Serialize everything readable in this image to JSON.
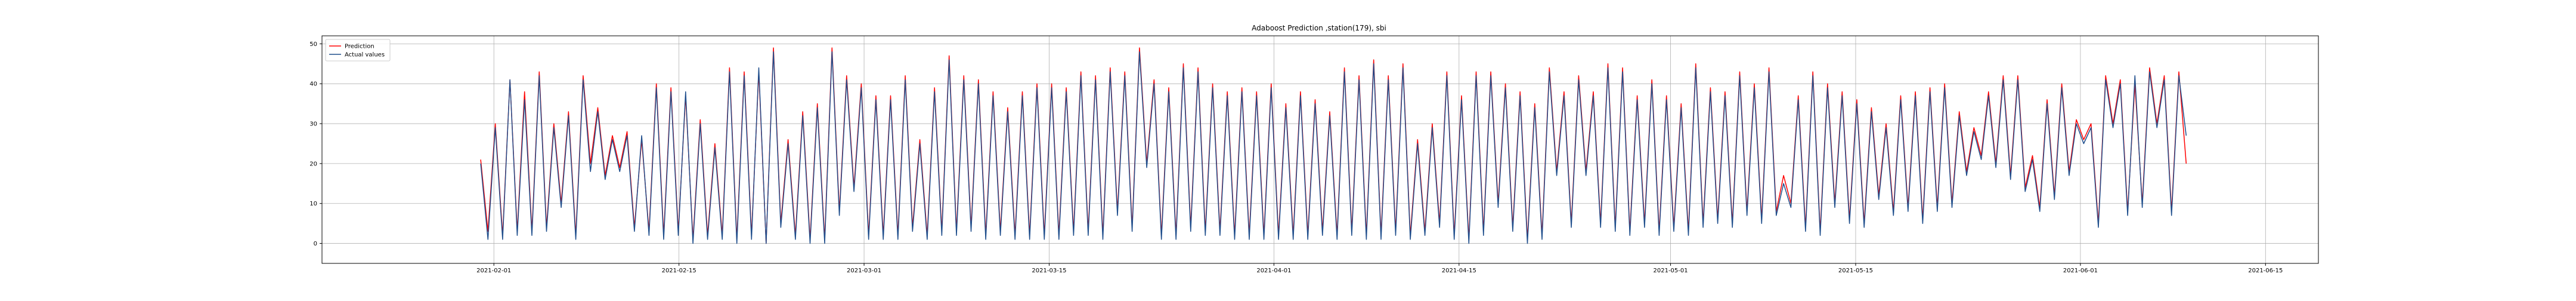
{
  "chart_data": {
    "type": "line",
    "title": "Adaboost Prediction ,station(179), sbi",
    "xlabel": "",
    "ylabel": "",
    "grid": true,
    "legend_placement": "top-left",
    "xlim": [
      "2021-01-19",
      "2021-06-19"
    ],
    "ylim": [
      -5,
      52
    ],
    "x_ticks": [
      "2021-02-01",
      "2021-02-15",
      "2021-03-01",
      "2021-03-15",
      "2021-04-01",
      "2021-04-15",
      "2021-05-01",
      "2021-05-15",
      "2021-06-01",
      "2021-06-15"
    ],
    "y_ticks": [
      0,
      10,
      20,
      30,
      40,
      50
    ],
    "x_range": [
      "2021-01-31",
      "2021-06-09"
    ],
    "series": [
      {
        "name": "Prediction",
        "color": "#ff0000",
        "values": [
          21,
          3,
          30,
          2,
          41,
          3,
          38,
          3,
          43,
          4,
          30,
          10,
          33,
          2,
          42,
          20,
          34,
          17,
          27,
          19,
          28,
          4,
          26,
          3,
          40,
          2,
          39,
          3,
          37,
          1,
          31,
          2,
          25,
          2,
          44,
          1,
          43,
          2,
          43,
          0,
          49,
          5,
          26,
          2,
          33,
          1,
          35,
          1,
          49,
          8,
          42,
          14,
          40,
          2,
          37,
          2,
          37,
          2,
          42,
          4,
          26,
          2,
          39,
          3,
          47,
          3,
          42,
          4,
          41,
          2,
          38,
          3,
          34,
          2,
          38,
          2,
          40,
          2,
          40,
          2,
          39,
          3,
          43,
          3,
          42,
          2,
          44,
          8,
          43,
          4,
          49,
          20,
          41,
          2,
          39,
          2,
          45,
          4,
          44,
          3,
          40,
          3,
          38,
          2,
          39,
          2,
          38,
          2,
          40,
          2,
          35,
          2,
          38,
          2,
          36,
          3,
          33,
          2,
          44,
          3,
          42,
          2,
          46,
          2,
          42,
          3,
          45,
          2,
          26,
          3,
          30,
          5,
          43,
          2,
          37,
          1,
          43,
          3,
          43,
          10,
          40,
          4,
          38,
          1,
          35,
          2,
          44,
          18,
          38,
          5,
          42,
          18,
          38,
          5,
          45,
          4,
          44,
          3,
          37,
          5,
          41,
          3,
          37,
          4,
          35,
          3,
          45,
          5,
          39,
          6,
          38,
          5,
          43,
          8,
          40,
          6,
          44,
          8,
          17,
          10,
          37,
          4,
          43,
          3,
          40,
          10,
          38,
          6,
          36,
          5,
          34,
          12,
          30,
          8,
          37,
          9,
          38,
          6,
          39,
          9,
          40,
          10,
          33,
          18,
          29,
          22,
          38,
          20,
          42,
          17,
          42,
          14,
          22,
          9,
          36,
          12,
          40,
          18,
          31,
          26,
          30,
          5,
          42,
          30,
          41,
          8,
          40,
          10,
          44,
          30,
          42,
          8,
          43,
          20
        ]
      },
      {
        "name": "Actual values",
        "color": "#1f4e8c",
        "values": [
          20,
          1,
          29,
          1,
          41,
          2,
          36,
          2,
          42,
          3,
          29,
          9,
          32,
          1,
          41,
          18,
          33,
          16,
          26,
          18,
          27,
          3,
          27,
          2,
          39,
          1,
          38,
          2,
          38,
          0,
          30,
          1,
          24,
          1,
          43,
          0,
          42,
          1,
          44,
          0,
          48,
          4,
          25,
          1,
          32,
          0,
          34,
          0,
          48,
          7,
          41,
          13,
          39,
          1,
          36,
          1,
          36,
          1,
          41,
          3,
          25,
          1,
          38,
          2,
          46,
          2,
          41,
          3,
          40,
          1,
          37,
          2,
          33,
          1,
          37,
          1,
          39,
          1,
          39,
          1,
          38,
          2,
          42,
          2,
          41,
          1,
          43,
          7,
          42,
          3,
          48,
          19,
          40,
          1,
          38,
          1,
          44,
          3,
          43,
          2,
          39,
          2,
          37,
          1,
          38,
          1,
          37,
          1,
          39,
          1,
          34,
          1,
          37,
          1,
          35,
          2,
          32,
          1,
          43,
          2,
          41,
          1,
          45,
          1,
          41,
          2,
          44,
          1,
          25,
          2,
          29,
          4,
          42,
          1,
          36,
          0,
          42,
          2,
          42,
          9,
          39,
          3,
          37,
          0,
          34,
          1,
          43,
          17,
          37,
          4,
          41,
          17,
          37,
          4,
          44,
          3,
          43,
          2,
          36,
          4,
          40,
          2,
          36,
          3,
          34,
          2,
          44,
          4,
          38,
          5,
          37,
          4,
          42,
          7,
          39,
          5,
          43,
          7,
          15,
          9,
          36,
          3,
          42,
          2,
          39,
          9,
          37,
          5,
          35,
          4,
          33,
          11,
          29,
          7,
          36,
          8,
          37,
          5,
          38,
          8,
          39,
          9,
          32,
          17,
          28,
          21,
          37,
          19,
          41,
          16,
          41,
          13,
          21,
          8,
          35,
          11,
          39,
          17,
          30,
          25,
          29,
          4,
          41,
          29,
          40,
          7,
          42,
          9,
          43,
          29,
          41,
          7,
          42,
          27
        ]
      }
    ]
  }
}
